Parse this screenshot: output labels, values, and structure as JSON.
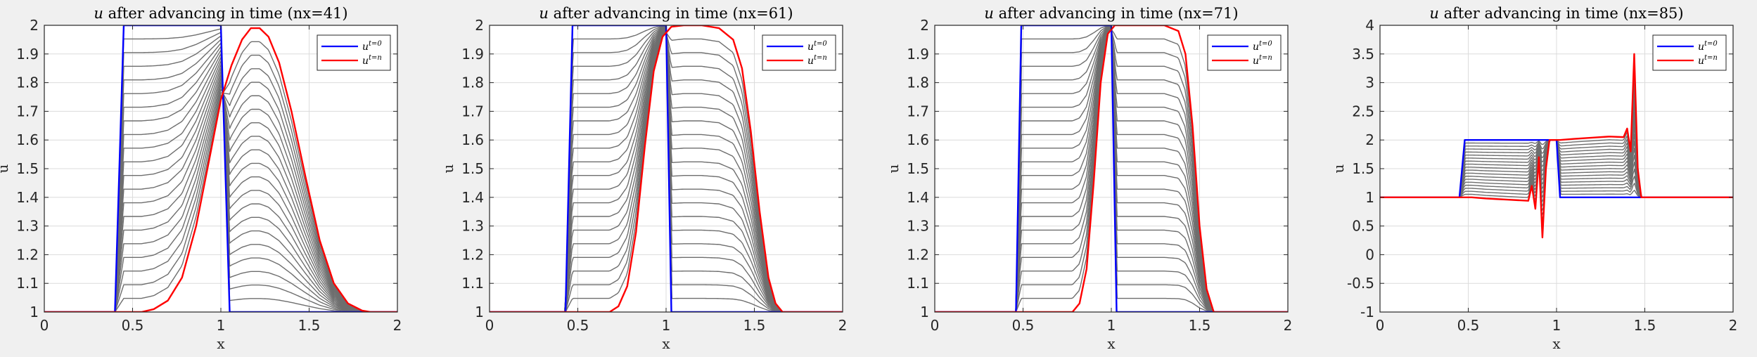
{
  "figure": {
    "background": "#f0f0f0"
  },
  "chart_data": [
    {
      "type": "line",
      "title_var": "u",
      "title_rest": " after advancing in time (nx=41)",
      "xlabel": "x",
      "ylabel": "u",
      "xlim": [
        0,
        2
      ],
      "ylim": [
        1,
        2
      ],
      "xticks": [
        0,
        0.5,
        1,
        1.5,
        2
      ],
      "xtick_labels": [
        "0",
        "0.5",
        "1",
        "1.5",
        "2"
      ],
      "yticks": [
        1,
        1.1,
        1.2,
        1.3,
        1.4,
        1.5,
        1.6,
        1.7,
        1.8,
        1.9,
        2
      ],
      "ytick_labels": [
        "1",
        "1.1",
        "1.2",
        "1.3",
        "1.4",
        "1.5",
        "1.6",
        "1.7",
        "1.8",
        "1.9",
        "2"
      ],
      "grid": true,
      "legend_position": "top-right",
      "legend": [
        {
          "base": "u",
          "sup": "t=0",
          "color": "#0000ff"
        },
        {
          "base": "u",
          "sup": "t=n",
          "color": "#ff0000"
        }
      ],
      "series": [
        {
          "role": "initial",
          "color": "#0000ff",
          "x": [
            0,
            0.4,
            0.45,
            1.0,
            1.05,
            2
          ],
          "y": [
            1,
            1,
            2,
            2,
            1,
            1
          ]
        },
        {
          "role": "final",
          "color": "#ff0000",
          "x": [
            0,
            0.55,
            0.62,
            0.7,
            0.78,
            0.86,
            0.94,
            1.0,
            1.06,
            1.12,
            1.17,
            1.22,
            1.27,
            1.33,
            1.4,
            1.48,
            1.56,
            1.64,
            1.72,
            1.8,
            1.85,
            2
          ],
          "y": [
            1,
            1,
            1.01,
            1.04,
            1.12,
            1.3,
            1.55,
            1.74,
            1.86,
            1.95,
            1.99,
            1.99,
            1.96,
            1.87,
            1.7,
            1.47,
            1.25,
            1.1,
            1.03,
            1.005,
            1,
            1
          ]
        },
        {
          "role": "intermediate",
          "color": "#6e6e6e",
          "count": 20
        }
      ]
    },
    {
      "type": "line",
      "title_var": "u",
      "title_rest": " after advancing in time (nx=61)",
      "xlabel": "x",
      "ylabel": "u",
      "xlim": [
        0,
        2
      ],
      "ylim": [
        1,
        2
      ],
      "xticks": [
        0,
        0.5,
        1,
        1.5,
        2
      ],
      "xtick_labels": [
        "0",
        "0.5",
        "1",
        "1.5",
        "2"
      ],
      "yticks": [
        1,
        1.1,
        1.2,
        1.3,
        1.4,
        1.5,
        1.6,
        1.7,
        1.8,
        1.9,
        2
      ],
      "ytick_labels": [
        "1",
        "1.1",
        "1.2",
        "1.3",
        "1.4",
        "1.5",
        "1.6",
        "1.7",
        "1.8",
        "1.9",
        "2"
      ],
      "grid": true,
      "legend_position": "top-right",
      "legend": [
        {
          "base": "u",
          "sup": "t=0",
          "color": "#0000ff"
        },
        {
          "base": "u",
          "sup": "t=n",
          "color": "#ff0000"
        }
      ],
      "series": [
        {
          "role": "initial",
          "color": "#0000ff",
          "x": [
            0,
            0.43,
            0.47,
            1.0,
            1.03,
            2
          ],
          "y": [
            1,
            1,
            2,
            2,
            1,
            1
          ]
        },
        {
          "role": "final",
          "color": "#ff0000",
          "x": [
            0,
            0.68,
            0.73,
            0.78,
            0.83,
            0.88,
            0.93,
            0.98,
            1.03,
            1.1,
            1.2,
            1.3,
            1.38,
            1.43,
            1.48,
            1.53,
            1.58,
            1.62,
            1.66,
            2
          ],
          "y": [
            1,
            1,
            1.02,
            1.09,
            1.28,
            1.58,
            1.84,
            1.96,
            1.995,
            2,
            2,
            1.99,
            1.95,
            1.85,
            1.63,
            1.35,
            1.12,
            1.03,
            1,
            1
          ]
        },
        {
          "role": "intermediate",
          "color": "#6e6e6e",
          "count": 20
        }
      ]
    },
    {
      "type": "line",
      "title_var": "u",
      "title_rest": " after advancing in time (nx=71)",
      "xlabel": "x",
      "ylabel": "u",
      "xlim": [
        0,
        2
      ],
      "ylim": [
        1,
        2
      ],
      "xticks": [
        0,
        0.5,
        1,
        1.5,
        2
      ],
      "xtick_labels": [
        "0",
        "0.5",
        "1",
        "1.5",
        "2"
      ],
      "yticks": [
        1,
        1.1,
        1.2,
        1.3,
        1.4,
        1.5,
        1.6,
        1.7,
        1.8,
        1.9,
        2
      ],
      "ytick_labels": [
        "1",
        "1.1",
        "1.2",
        "1.3",
        "1.4",
        "1.5",
        "1.6",
        "1.7",
        "1.8",
        "1.9",
        "2"
      ],
      "grid": true,
      "legend_position": "top-right",
      "legend": [
        {
          "base": "u",
          "sup": "t=0",
          "color": "#0000ff"
        },
        {
          "base": "u",
          "sup": "t=n",
          "color": "#ff0000"
        }
      ],
      "series": [
        {
          "role": "initial",
          "color": "#0000ff",
          "x": [
            0,
            0.46,
            0.49,
            1.0,
            1.03,
            2
          ],
          "y": [
            1,
            1,
            2,
            2,
            1,
            1
          ]
        },
        {
          "role": "final",
          "color": "#ff0000",
          "x": [
            0,
            0.78,
            0.82,
            0.86,
            0.9,
            0.94,
            0.98,
            1.02,
            1.1,
            1.2,
            1.3,
            1.38,
            1.42,
            1.46,
            1.5,
            1.54,
            1.58,
            2
          ],
          "y": [
            1,
            1,
            1.03,
            1.15,
            1.45,
            1.8,
            1.97,
            2,
            2,
            2,
            2,
            1.98,
            1.9,
            1.65,
            1.3,
            1.08,
            1,
            1
          ]
        },
        {
          "role": "intermediate",
          "color": "#6e6e6e",
          "count": 20
        }
      ]
    },
    {
      "type": "line",
      "title_var": "u",
      "title_rest": " after advancing in time (nx=85)",
      "xlabel": "x",
      "ylabel": "u",
      "xlim": [
        0,
        2
      ],
      "ylim": [
        -1,
        4
      ],
      "xticks": [
        0,
        0.5,
        1,
        1.5,
        2
      ],
      "xtick_labels": [
        "0",
        "0.5",
        "1",
        "1.5",
        "2"
      ],
      "yticks": [
        -1,
        -0.5,
        0,
        0.5,
        1,
        1.5,
        2,
        2.5,
        3,
        3.5,
        4
      ],
      "ytick_labels": [
        "-1",
        "-0.5",
        "0",
        "0.5",
        "1",
        "1.5",
        "2",
        "2.5",
        "3",
        "3.5",
        "4"
      ],
      "grid": true,
      "legend_position": "top-right",
      "legend": [
        {
          "base": "u",
          "sup": "t=0",
          "color": "#0000ff"
        },
        {
          "base": "u",
          "sup": "t=n",
          "color": "#ff0000"
        }
      ],
      "series": [
        {
          "role": "initial",
          "color": "#0000ff",
          "x": [
            0,
            0.45,
            0.48,
            1.0,
            1.02,
            1.5,
            2
          ],
          "y": [
            1,
            1,
            2,
            2,
            1,
            1,
            1
          ]
        },
        {
          "role": "final",
          "color": "#ff0000",
          "x": [
            0,
            0.46,
            0.52,
            0.6,
            0.66,
            0.72,
            0.78,
            0.84,
            0.86,
            0.88,
            0.9,
            0.92,
            0.94,
            0.96,
            0.98,
            1.02,
            1.1,
            1.2,
            1.3,
            1.38,
            1.4,
            1.42,
            1.44,
            1.46,
            1.48,
            2
          ],
          "y": [
            1,
            1,
            1,
            0.98,
            0.97,
            0.96,
            0.95,
            0.94,
            1.2,
            0.8,
            1.7,
            0.3,
            1.5,
            2.0,
            2.0,
            2.0,
            2.02,
            2.04,
            2.06,
            2.05,
            2.2,
            1.8,
            3.5,
            1.5,
            1.0,
            1
          ]
        },
        {
          "role": "intermediate",
          "color": "#6e6e6e",
          "count": 18
        }
      ]
    }
  ]
}
